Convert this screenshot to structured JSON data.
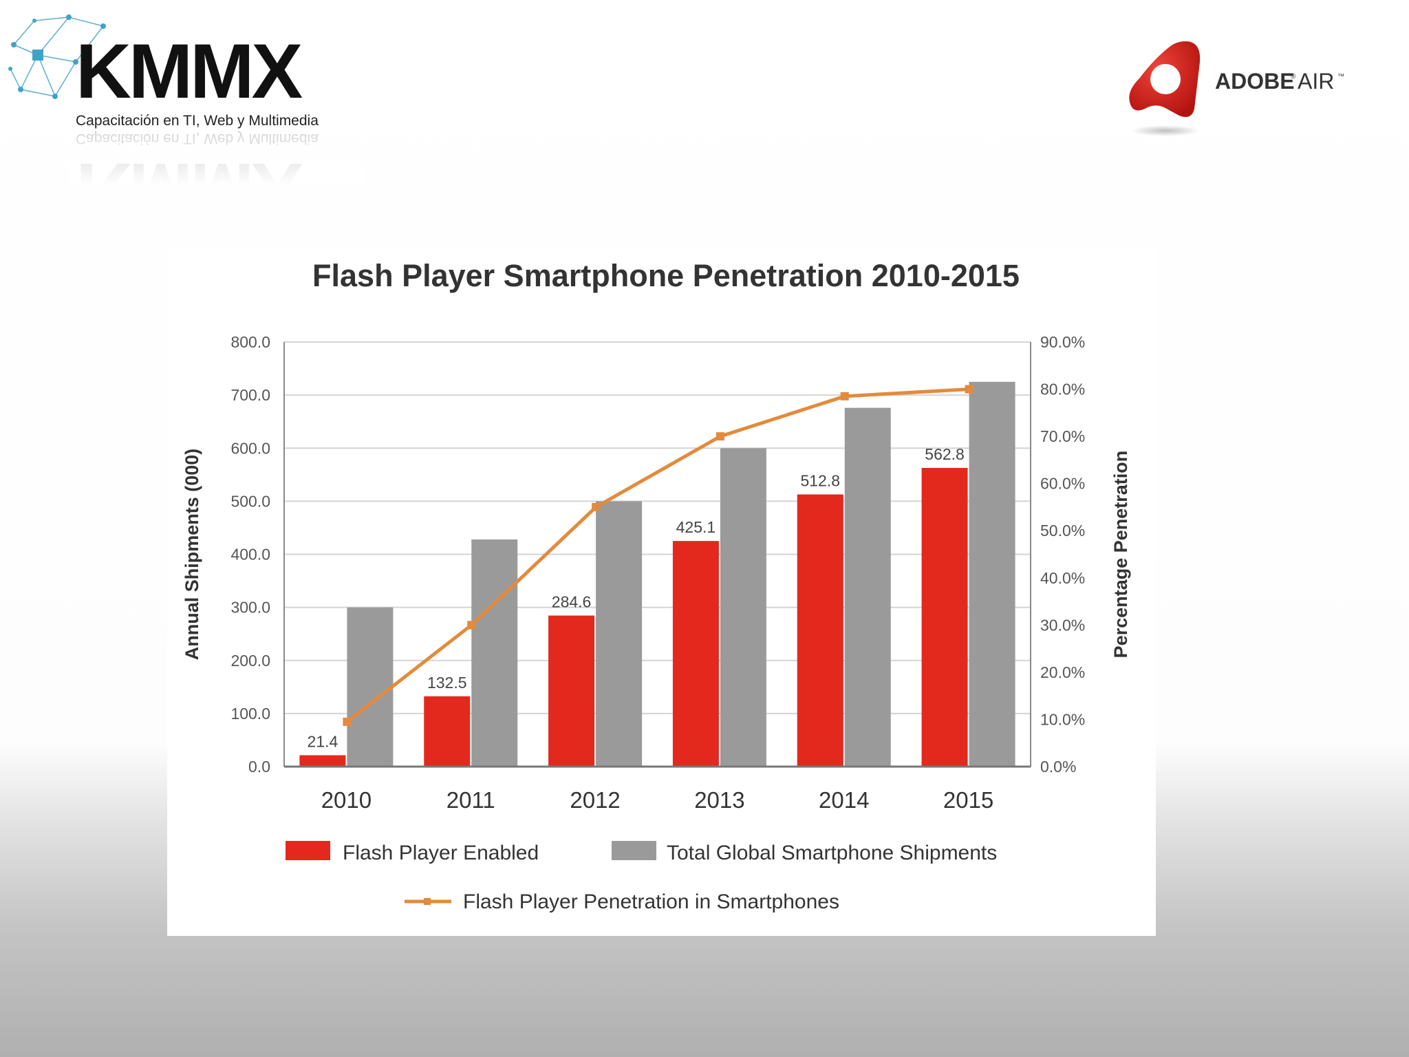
{
  "logos": {
    "left": {
      "name": "KMMX",
      "tagline": "Capacitación en TI, Web y Multimedia"
    },
    "right": {
      "name": "ADOBE",
      "name2": "AIR",
      "reg": "®",
      "tm": "™"
    }
  },
  "colors": {
    "flash_enabled": "#e3281d",
    "total_shipments": "#9b9a9b",
    "penetration_line": "#e38a3c",
    "grid": "#d4d4d4",
    "axis_text": "#555555"
  },
  "chart_data": {
    "type": "bar",
    "title": "Flash Player Smartphone Penetration 2010-2015",
    "categories": [
      "2010",
      "2011",
      "2012",
      "2013",
      "2014",
      "2015"
    ],
    "series": [
      {
        "name": "Flash Player Enabled",
        "values": [
          21.4,
          132.5,
          284.6,
          425.1,
          512.8,
          562.8
        ],
        "axis": "left",
        "type": "bar"
      },
      {
        "name": "Total Global Smartphone Shipments",
        "values": [
          300,
          428,
          500,
          600,
          676,
          725
        ],
        "axis": "left",
        "type": "bar"
      },
      {
        "name": "Flash Player Penetration in Smartphones",
        "values": [
          9.5,
          30.0,
          55.0,
          70.0,
          78.5,
          80.0
        ],
        "axis": "right",
        "type": "line"
      }
    ],
    "data_labels": [
      "21.4",
      "132.5",
      "284.6",
      "425.1",
      "512.8",
      "562.8"
    ],
    "ylabel": "Annual Shipments (000)",
    "y2label": "Percentage Penetration",
    "ylim": [
      0,
      800
    ],
    "y2lim": [
      0,
      90
    ],
    "yticks": [
      "0.0",
      "100.0",
      "200.0",
      "300.0",
      "400.0",
      "500.0",
      "600.0",
      "700.0",
      "800.0"
    ],
    "y2ticks": [
      "0.0%",
      "10.0%",
      "20.0%",
      "30.0%",
      "40.0%",
      "50.0%",
      "60.0%",
      "70.0%",
      "80.0%",
      "90.0%"
    ],
    "grid": true,
    "legend": "bottom"
  }
}
